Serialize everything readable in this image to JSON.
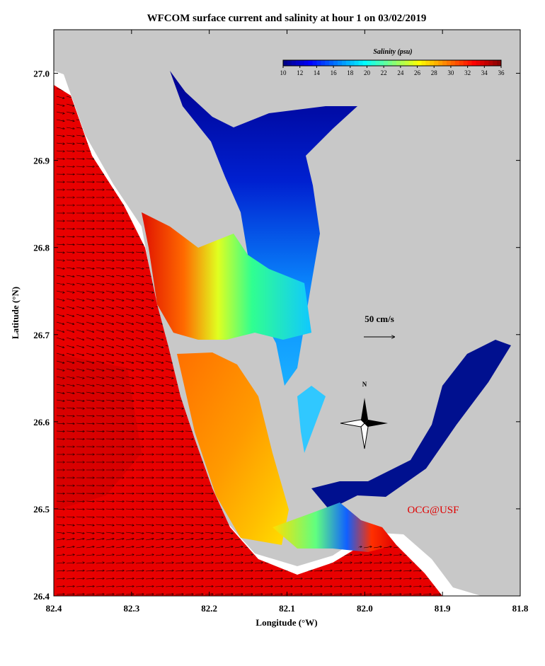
{
  "chart_data": {
    "type": "map",
    "title": "WFCOM surface current and salinity at hour 1 on 03/02/2019",
    "xlabel": "Longitude (°W)",
    "ylabel": "Latitude (°N)",
    "xlim": [
      82.4,
      81.8
    ],
    "ylim": [
      26.4,
      27.05
    ],
    "xticks": [
      82.4,
      82.3,
      82.2,
      82.1,
      {
        "value": 82,
        "label": "82.0"
      },
      81.9,
      81.8
    ],
    "yticks": [
      {
        "value": 26.4,
        "label": "26.4"
      },
      {
        "value": 26.5,
        "label": "26.5"
      },
      {
        "value": 26.6,
        "label": "26.6"
      },
      {
        "value": 26.7,
        "label": "26.7"
      },
      {
        "value": 26.8,
        "label": "26.8"
      },
      {
        "value": 26.9,
        "label": "26.9"
      },
      {
        "value": 27,
        "label": "27.0"
      }
    ],
    "colorbar": {
      "label": "Salinity (psu)",
      "range": [
        10,
        36
      ],
      "ticks": [
        10,
        12,
        14,
        16,
        18,
        20,
        22,
        24,
        26,
        28,
        30,
        32,
        34,
        36
      ]
    },
    "scale_label": "50 cm/s",
    "compass_label": "N",
    "credit": "OCG@USF"
  }
}
